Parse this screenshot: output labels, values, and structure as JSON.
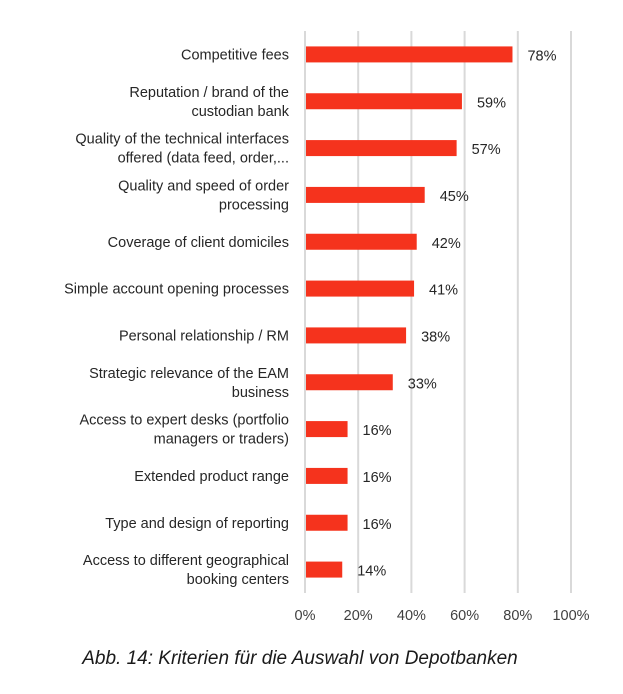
{
  "chart_data": {
    "type": "bar",
    "orientation": "horizontal",
    "categories": [
      [
        "Competitive fees"
      ],
      [
        "Reputation / brand of the",
        "custodian bank"
      ],
      [
        "Quality of the technical interfaces",
        "offered (data feed, order,..."
      ],
      [
        "Quality and speed of order",
        "processing"
      ],
      [
        "Coverage of client domiciles"
      ],
      [
        "Simple account opening processes"
      ],
      [
        "Personal relationship / RM"
      ],
      [
        "Strategic relevance of the EAM",
        "business"
      ],
      [
        "Access to expert desks (portfolio",
        "managers or traders)"
      ],
      [
        "Extended product range"
      ],
      [
        "Type and design of reporting"
      ],
      [
        "Access to different geographical",
        "booking centers"
      ]
    ],
    "values": [
      78,
      59,
      57,
      45,
      42,
      41,
      38,
      33,
      16,
      16,
      16,
      14
    ],
    "value_labels": [
      "78%",
      "59%",
      "57%",
      "45%",
      "42%",
      "41%",
      "38%",
      "33%",
      "16%",
      "16%",
      "16%",
      "14%"
    ],
    "xlim": [
      0,
      100
    ],
    "xticks": [
      0,
      20,
      40,
      60,
      80,
      100
    ],
    "xtick_labels": [
      "0%",
      "20%",
      "40%",
      "60%",
      "80%",
      "100%"
    ],
    "grid": "vertical",
    "legend": "none",
    "bar_color": "#f5331d",
    "grid_color": "#d9d9d9",
    "title": "",
    "xlabel": "",
    "ylabel": ""
  },
  "caption": "Abb. 14: Kriterien für die Auswahl von Depotbanken"
}
